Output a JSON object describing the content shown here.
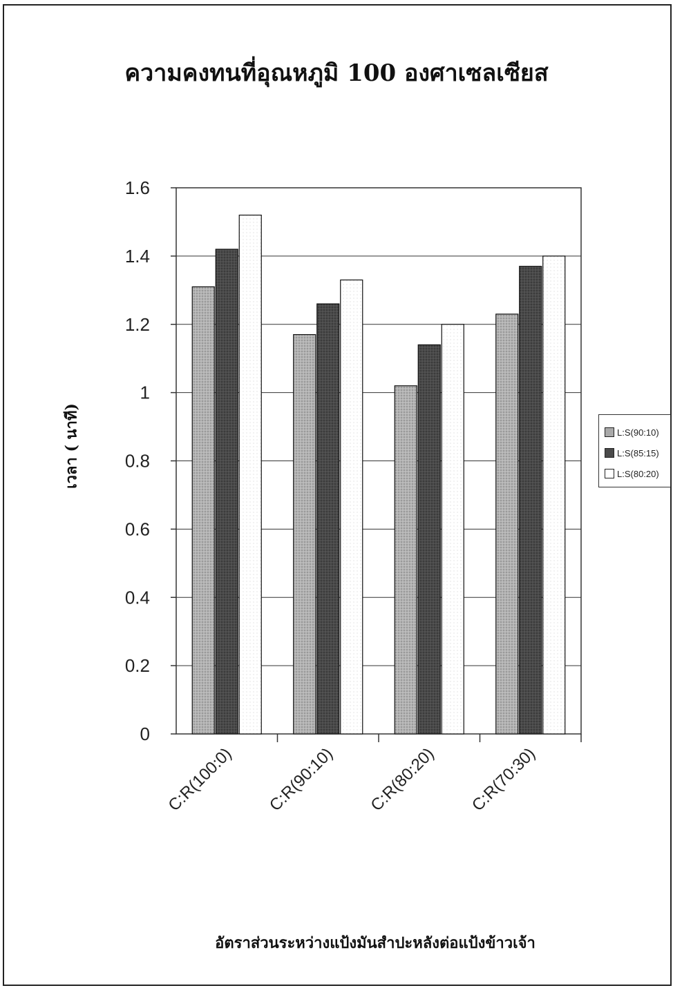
{
  "chart_data": {
    "type": "bar",
    "title": "ความคงทนที่อุณหภูมิ 100 องศาเซลเซียส",
    "xlabel": "อัตราส่วนระหว่างแป้งมันสำปะหลังต่อแป้งข้าวเจ้า",
    "ylabel": "เวลา ( นาที)",
    "ylim": [
      0,
      1.6
    ],
    "yticks": [
      "0",
      "0.2",
      "0.4",
      "0.6",
      "0.8",
      "1",
      "1.2",
      "1.4",
      "1.6"
    ],
    "grid": true,
    "legend_position": "right",
    "categories": [
      "C:R(100:0)",
      "C:R(90:10)",
      "C:R(80:20)",
      "C:R(70:30)"
    ],
    "series": [
      {
        "name": "L:S(90:10)",
        "values": [
          1.31,
          1.17,
          1.02,
          1.23
        ],
        "color": "#a9a9a9"
      },
      {
        "name": "L:S(85:15)",
        "values": [
          1.42,
          1.26,
          1.14,
          1.37
        ],
        "color": "#4a4a4a"
      },
      {
        "name": "L:S(80:20)",
        "values": [
          1.52,
          1.33,
          1.2,
          1.4
        ],
        "color": "#ffffff"
      }
    ]
  }
}
